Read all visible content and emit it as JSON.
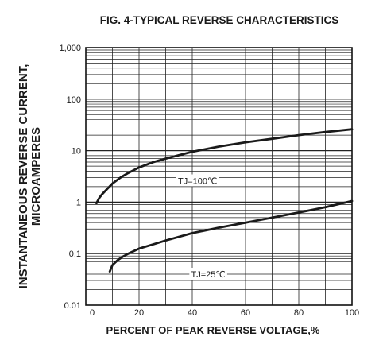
{
  "chart_data": {
    "type": "line",
    "title": "FIG. 4-TYPICAL REVERSE CHARACTERISTICS",
    "xlabel": "PERCENT OF PEAK REVERSE VOLTAGE,%",
    "ylabel": [
      "INSTANTANEOUS REVERSE CURRENT,",
      "MICROAMPERES"
    ],
    "xlim": [
      0,
      100
    ],
    "ylim": [
      0.01,
      1000
    ],
    "y_scale": "log",
    "x_ticks": [
      0,
      20,
      40,
      60,
      80,
      100
    ],
    "x_tick_labels": [
      "0",
      "20",
      "40",
      "60",
      "80",
      "100"
    ],
    "y_ticks": [
      0.01,
      0.1,
      1,
      10,
      100,
      1000
    ],
    "y_tick_labels": [
      "0.01",
      "0.1",
      "1",
      "10",
      "100",
      "1,000"
    ],
    "grid": true,
    "series": [
      {
        "name": "TJ=100℃",
        "x": [
          4,
          5,
          6,
          8,
          10,
          13,
          16,
          20,
          25,
          30,
          40,
          50,
          60,
          70,
          80,
          90,
          100
        ],
        "y": [
          0.95,
          1.2,
          1.4,
          1.8,
          2.3,
          3.0,
          3.7,
          4.7,
          5.9,
          7.0,
          9.5,
          12,
          14.5,
          17,
          20,
          23,
          26
        ]
      },
      {
        "name": "TJ=25℃",
        "x": [
          9,
          10,
          12,
          14,
          16,
          20,
          25,
          30,
          40,
          50,
          60,
          70,
          80,
          90,
          100
        ],
        "y": [
          0.045,
          0.06,
          0.075,
          0.088,
          0.1,
          0.125,
          0.15,
          0.18,
          0.25,
          0.32,
          0.4,
          0.5,
          0.63,
          0.8,
          1.05
        ]
      }
    ]
  }
}
